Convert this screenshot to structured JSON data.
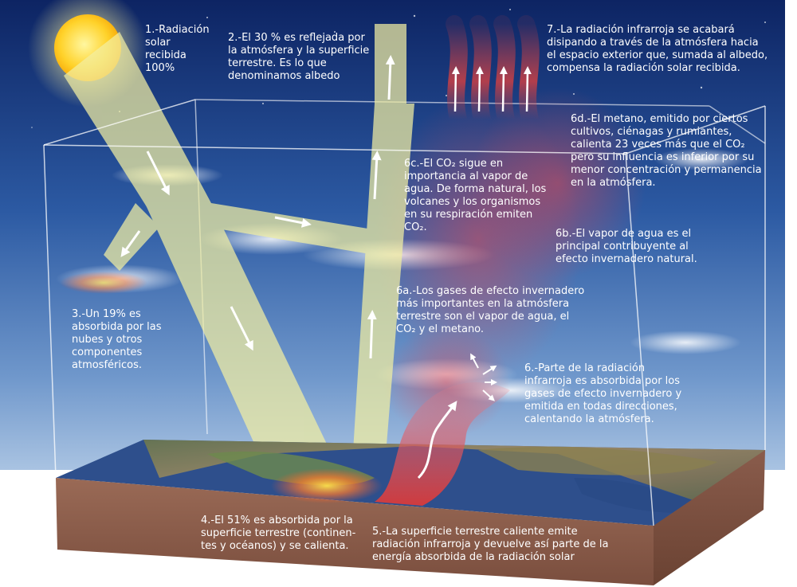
{
  "labels": {
    "l1": [
      "1.-Radiación",
      "solar",
      "recibida",
      "100%"
    ],
    "l2": [
      "2.-El 30 % es reflejada por",
      "la atmósfera y la superficie",
      "terrestre. Es lo que",
      "denominamos albedo"
    ],
    "l3": [
      "3.-Un 19% es",
      "absorbida por las",
      "nubes y otros",
      "componentes",
      "atmosféricos."
    ],
    "l4": [
      "4.-El 51% es absorbida por la",
      "superficie terrestre (continen-",
      "tes y océanos) y se calienta."
    ],
    "l5": [
      "5.-La superficie terrestre caliente emite",
      "radiación infrarroja y devuelve así parte de la",
      "energía absorbida de la radiación solar"
    ],
    "l6": [
      "6.-Parte de la radiación",
      "infrarroja es absorbida por los",
      "gases de efecto invernadero y",
      "emitida en todas direcciones,",
      "calentando la atmósfera."
    ],
    "l6a": [
      "6a.-Los gases de efecto invernadero",
      "más importantes en la atmósfera",
      "terrestre son el vapor de agua, el",
      "CO₂ y el metano."
    ],
    "l6b": [
      "6b.-El vapor de agua es el",
      "principal contribuyente al",
      "efecto invernadero natural."
    ],
    "l6c": [
      "6c.-El CO₂ sigue en",
      "importancia al vapor de",
      "agua. De forma natural, los",
      "volcanes y los organismos",
      "en su respiración emiten",
      "CO₂."
    ],
    "l6d": [
      "6d.-El metano, emitido por ciertos",
      "cultivos, ciénagas y rumiantes,",
      "calienta 23 veces más que el CO₂",
      "pero su influencia es inferior por su",
      "menor concentración y permanencia",
      "en la atmósfera."
    ],
    "l7": [
      "7.-La radiación infrarroja se acabará",
      "disipando a través de la atmósfera hacia",
      "el espacio exterior que, sumada al albedo,",
      "compensa la radiación solar recibida."
    ]
  },
  "colors": {
    "sky_top": "#0f2a6b",
    "sky_bottom": "#7ea2cf",
    "sun": "#ffcc22",
    "beam": "#f3f0a0",
    "infrared": "#d8464a",
    "ocean": "#2a4a86",
    "soil": "#8a5a48",
    "text": "#ffffff"
  }
}
